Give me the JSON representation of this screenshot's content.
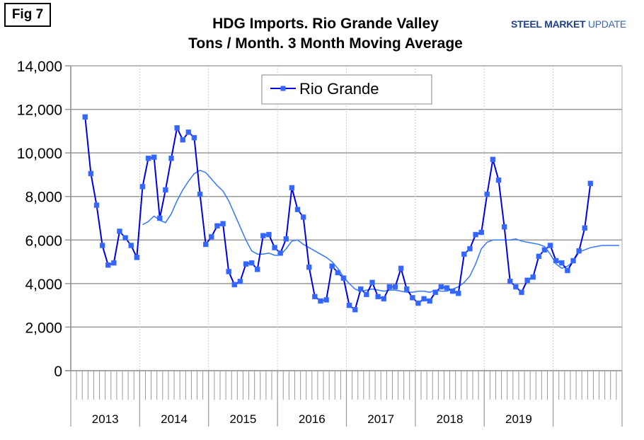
{
  "figure_label": "Fig 7",
  "logo": {
    "part1": "STEEL",
    "part2": "MARKET",
    "part3": "UPDATE"
  },
  "colors": {
    "series": "#0000e6",
    "marker": "#3366ff",
    "avg": "#3377ff",
    "grid": "#999999"
  },
  "chart_data": {
    "type": "line",
    "title": "HDG Imports. Rio Grande Valley",
    "subtitle": "Tons / Month. 3 Month Moving Average",
    "xlabel": "",
    "ylabel": "",
    "ylim": [
      0,
      14000
    ],
    "yticks": [
      0,
      2000,
      4000,
      6000,
      8000,
      10000,
      12000,
      14000
    ],
    "ytick_labels": [
      "0",
      "2,000",
      "4,000",
      "6,000",
      "8,000",
      "10,000",
      "12,000",
      "14,000"
    ],
    "year_labels": [
      "2013",
      "2014",
      "2015",
      "2016",
      "2017",
      "2018",
      "2019",
      ""
    ],
    "grid": true,
    "legend": {
      "position": "top-center",
      "entries": [
        "Rio Grande"
      ]
    },
    "series": [
      {
        "name": "Rio Grande",
        "start": "2013-03",
        "marker": "square",
        "values": [
          11650,
          9050,
          7600,
          5750,
          4850,
          4950,
          6400,
          6100,
          5750,
          5200,
          8450,
          9750,
          9800,
          7000,
          8300,
          9750,
          11150,
          10600,
          10950,
          10700,
          8100,
          5800,
          6150,
          6650,
          6750,
          4550,
          3950,
          4100,
          4900,
          4950,
          4650,
          6200,
          6250,
          5650,
          5400,
          6050,
          8400,
          7400,
          7050,
          4750,
          3400,
          3200,
          3250,
          4800,
          4500,
          4250,
          3000,
          2800,
          3750,
          3500,
          4050,
          3400,
          3300,
          3850,
          3850,
          4700,
          3750,
          3350,
          3100,
          3300,
          3200,
          3600,
          3850,
          3800,
          3650,
          3550,
          5350,
          5600,
          6250,
          6350,
          8100,
          9700,
          8750,
          6600,
          4100,
          3850,
          3600,
          4150,
          4300,
          5250,
          5550,
          5750,
          5050,
          4950,
          4600,
          5050,
          5500,
          6550,
          8600
        ]
      },
      {
        "name": "Moving Average",
        "start": "2014-01",
        "marker": "none",
        "values": [
          6700,
          6850,
          7100,
          6900,
          6800,
          7200,
          7800,
          8300,
          8700,
          9050,
          9200,
          9100,
          8800,
          8500,
          8250,
          7800,
          7200,
          6600,
          6000,
          5500,
          5350,
          5350,
          5400,
          5300,
          5300,
          5600,
          5950,
          6000,
          5800,
          5650,
          5500,
          5350,
          5200,
          5000,
          4700,
          4300,
          4000,
          3750,
          3650,
          3700,
          3750,
          3700,
          3650,
          3700,
          3700,
          3650,
          3600,
          3600,
          3650,
          3650,
          3600,
          3700,
          3650,
          3650,
          3750,
          3850,
          4050,
          4350,
          4900,
          5600,
          5900,
          6000,
          6000,
          6000,
          6000,
          6050,
          5950,
          5900,
          5850,
          5800,
          5700,
          5350,
          4900,
          4700,
          4800,
          5000,
          5450,
          5550,
          5650,
          5700,
          5750,
          5750,
          5750,
          5750
        ]
      }
    ]
  }
}
